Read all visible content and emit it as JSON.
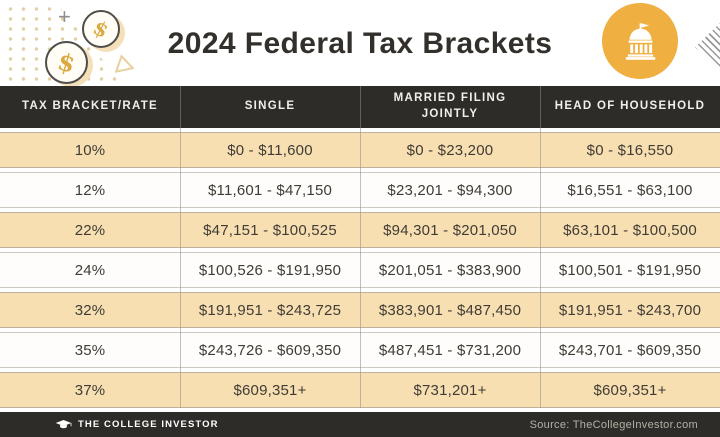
{
  "chart_data": {
    "type": "table",
    "title": "2024 Federal Tax Brackets",
    "columns": [
      "TAX BRACKET/RATE",
      "SINGLE",
      "MARRIED FILING JOINTLY",
      "HEAD OF HOUSEHOLD"
    ],
    "rows": [
      [
        "10%",
        "$0 - $11,600",
        "$0 - $23,200",
        "$0 - $16,550"
      ],
      [
        "12%",
        "$11,601 - $47,150",
        "$23,201 - $94,300",
        "$16,551 - $63,100"
      ],
      [
        "22%",
        "$47,151 - $100,525",
        "$94,301 - $201,050",
        "$63,101 - $100,500"
      ],
      [
        "24%",
        "$100,526 - $191,950",
        "$201,051 - $383,900",
        "$100,501 - $191,950"
      ],
      [
        "32%",
        "$191,951 - $243,725",
        "$383,901 - $487,450",
        "$191,951 - $243,700"
      ],
      [
        "35%",
        "$243,726 - $609,350",
        "$487,451 - $731,200",
        "$243,701 - $609,350"
      ],
      [
        "37%",
        "$609,351+",
        "$731,201+",
        "$609,351+"
      ]
    ]
  },
  "decorations": {
    "plus": "+",
    "dollar": "$"
  },
  "colors": {
    "gold": "#EFAF41",
    "tan_row": "#F7DFB2",
    "dark_band": "#2E2C29"
  },
  "footer": {
    "brand": "THE COLLEGE INVESTOR",
    "source": "Source: TheCollegeInvestor.com"
  }
}
